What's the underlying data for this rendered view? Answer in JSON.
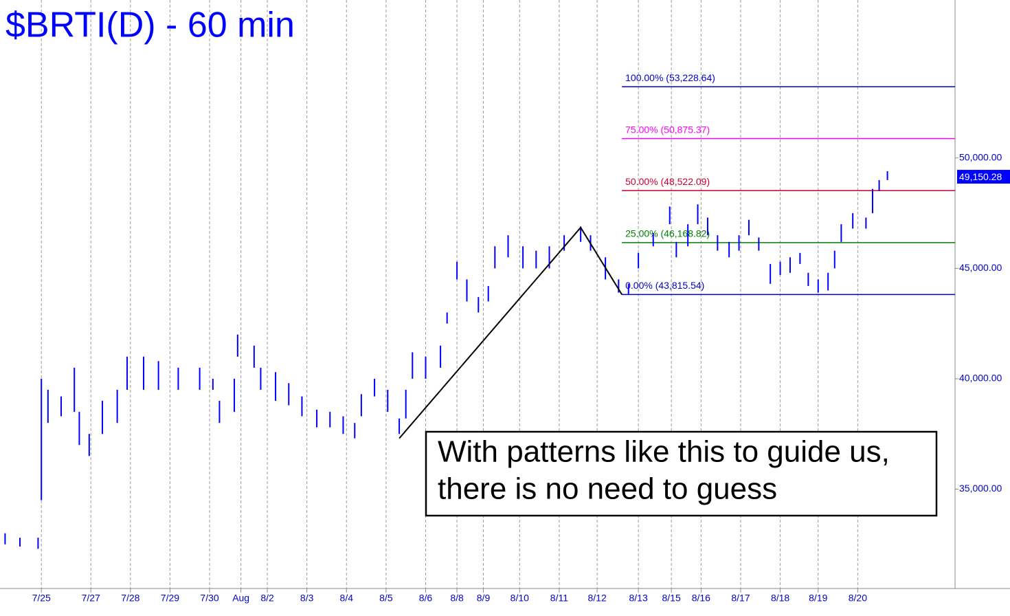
{
  "chart_data": {
    "type": "range-bar",
    "title": "$BRTI(D) - 60 min",
    "xlim": [
      0,
      577
    ],
    "xticks": [
      {
        "value": 23,
        "label": "7/25"
      },
      {
        "value": 53,
        "label": "7/27"
      },
      {
        "value": 77,
        "label": "7/28"
      },
      {
        "value": 101,
        "label": "7/29"
      },
      {
        "value": 125,
        "label": "7/30"
      },
      {
        "value": 144,
        "label": "Aug"
      },
      {
        "value": 160,
        "label": "8/2"
      },
      {
        "value": 184,
        "label": "8/3"
      },
      {
        "value": 208,
        "label": "8/4"
      },
      {
        "value": 232,
        "label": "8/5"
      },
      {
        "value": 256,
        "label": "8/6"
      },
      {
        "value": 275,
        "label": "8/8"
      },
      {
        "value": 291,
        "label": "8/9"
      },
      {
        "value": 313,
        "label": "8/10"
      },
      {
        "value": 337,
        "label": "8/11"
      },
      {
        "value": 360,
        "label": "8/12"
      },
      {
        "value": 385,
        "label": "8/13"
      },
      {
        "value": 405,
        "label": "8/15"
      },
      {
        "value": 423,
        "label": "8/16"
      },
      {
        "value": 447,
        "label": "8/17"
      },
      {
        "value": 471,
        "label": "8/18"
      },
      {
        "value": 494,
        "label": "8/19"
      },
      {
        "value": 518,
        "label": "8/20"
      }
    ],
    "ylim": [
      30500,
      57000
    ],
    "yticks": [
      {
        "value": 35000,
        "label": "35,000.00"
      },
      {
        "value": 40000,
        "label": "40,000.00"
      },
      {
        "value": 45000,
        "label": "45,000.00"
      },
      {
        "value": 50000,
        "label": "50,000.00"
      }
    ],
    "color": "#0000ff",
    "x": [
      1,
      10,
      21,
      23,
      27,
      35,
      43,
      46,
      52,
      60,
      69,
      75,
      85,
      94,
      106,
      119,
      127,
      131,
      140,
      142,
      152,
      156,
      165,
      173,
      181,
      190,
      198,
      206,
      213,
      217,
      225,
      233,
      240,
      244,
      248,
      256,
      265,
      269,
      275,
      281,
      288,
      294,
      298,
      306,
      315,
      323,
      331,
      340,
      350,
      356,
      365,
      373,
      379,
      385,
      394,
      404,
      408,
      415,
      421,
      427,
      433,
      440,
      446,
      452,
      458,
      465,
      471,
      477,
      483,
      488,
      494,
      500,
      504,
      508,
      515,
      523,
      527,
      531,
      536
    ],
    "low": [
      32500,
      32400,
      32300,
      34500,
      38000,
      38300,
      38500,
      37000,
      36500,
      37500,
      38000,
      39500,
      39500,
      39500,
      39500,
      39500,
      39500,
      38000,
      38500,
      41000,
      40500,
      39500,
      39000,
      38800,
      38300,
      37800,
      37800,
      37500,
      37300,
      38300,
      39200,
      38500,
      37500,
      38200,
      40000,
      40000,
      40500,
      42500,
      44500,
      43500,
      43000,
      43500,
      45000,
      45500,
      45000,
      45000,
      45000,
      45800,
      46200,
      45800,
      44500,
      43900,
      43800,
      45000,
      46000,
      47000,
      45500,
      46000,
      47000,
      46500,
      45800,
      45500,
      45800,
      46500,
      45800,
      44300,
      44700,
      44800,
      45200,
      44200,
      43900,
      44000,
      45000,
      46200,
      46800,
      46800,
      47500,
      48500,
      49000
    ],
    "high": [
      33000,
      32800,
      32800,
      40000,
      39500,
      39200,
      40500,
      38500,
      37500,
      39000,
      39500,
      41000,
      41000,
      40800,
      40500,
      40500,
      40000,
      39000,
      40000,
      42000,
      41500,
      40500,
      40300,
      39800,
      39200,
      38600,
      38500,
      38300,
      38000,
      39300,
      40000,
      39500,
      38200,
      39500,
      41200,
      41000,
      41500,
      43000,
      45300,
      44500,
      43700,
      44200,
      46000,
      46500,
      46000,
      45800,
      46000,
      46500,
      46900,
      46500,
      45500,
      44500,
      44300,
      45700,
      46600,
      47800,
      46200,
      47000,
      47900,
      47300,
      46500,
      46200,
      46500,
      47200,
      46400,
      45200,
      45300,
      45500,
      45700,
      44800,
      44500,
      44800,
      45800,
      47000,
      47500,
      47300,
      48600,
      49000,
      49400
    ],
    "last_price": {
      "value": 49150.28,
      "label": "49,150.28"
    },
    "levels": [
      {
        "label": "100.00% (53,228.64)",
        "value": 53228.64,
        "color": "#0000cc"
      },
      {
        "label": "75.00% (50,875.37)",
        "value": 50875.37,
        "color": "#ff00ff"
      },
      {
        "label": "50.00% (48,522.09)",
        "value": 48522.09,
        "color": "#cc0033"
      },
      {
        "label": "25.00% (46,168.82)",
        "value": 46168.82,
        "color": "#008000"
      },
      {
        "label": "0.00% (43,815.54)",
        "value": 43815.54,
        "color": "#0000cc"
      }
    ],
    "levels_x_start": 375,
    "pattern": {
      "x": [
        240,
        350,
        375
      ],
      "y": [
        37300,
        46850,
        43815.54
      ]
    },
    "annotation": [
      "With patterns like this to guide us,",
      "there is no need to guess"
    ]
  }
}
